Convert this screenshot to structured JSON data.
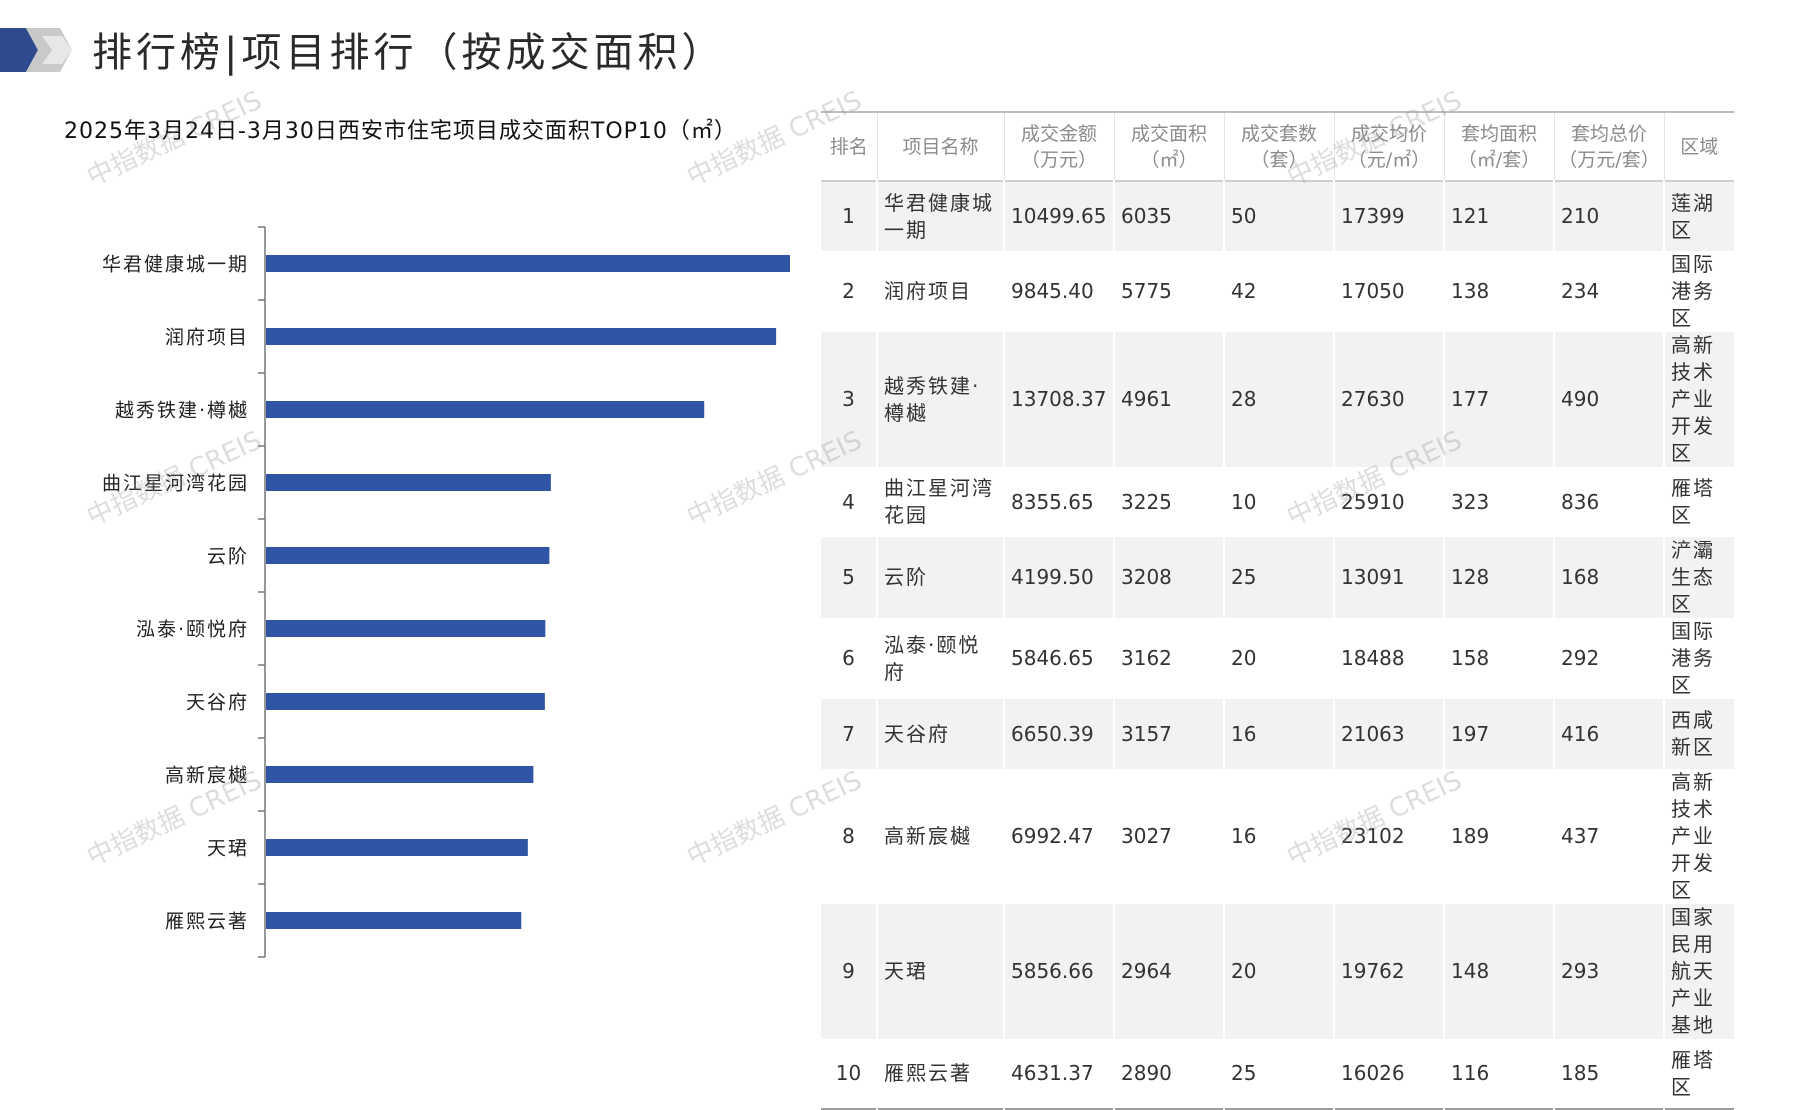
{
  "header": {
    "title": "排行榜|项目排行（按成交面积）"
  },
  "chart_data": {
    "type": "bar",
    "orientation": "horizontal",
    "title": "2025年3月24日-3月30日西安市住宅项目成交面积TOP10（㎡）",
    "categories": [
      "华君健康城一期",
      "润府项目",
      "越秀铁建·樽樾",
      "曲江星河湾花园",
      "云阶",
      "泓泰·颐悦府",
      "天谷府",
      "高新宸樾",
      "天珺",
      "雁熙云著"
    ],
    "values": [
      6035,
      5775,
      4961,
      3225,
      3208,
      3162,
      3157,
      3027,
      2964,
      2890
    ],
    "xlim": [
      0,
      9000
    ],
    "bar_color": "#2f55a4",
    "grid": false,
    "legend": "none"
  },
  "table": {
    "headers": [
      "排名",
      "项目名称",
      "成交金额\n（万元）",
      "成交面积\n（㎡）",
      "成交套数\n（套）",
      "成交均价\n（元/㎡）",
      "套均面积\n（㎡/套）",
      "套均总价\n（万元/套）",
      "区域"
    ],
    "rows": [
      [
        "1",
        "华君健康城一期",
        "10499.65",
        "6035",
        "50",
        "17399",
        "121",
        "210",
        "莲湖区"
      ],
      [
        "2",
        "润府项目",
        "9845.40",
        "5775",
        "42",
        "17050",
        "138",
        "234",
        "国际港务区"
      ],
      [
        "3",
        "越秀铁建·樽樾",
        "13708.37",
        "4961",
        "28",
        "27630",
        "177",
        "490",
        "高新技术产业开发区"
      ],
      [
        "4",
        "曲江星河湾花园",
        "8355.65",
        "3225",
        "10",
        "25910",
        "323",
        "836",
        "雁塔区"
      ],
      [
        "5",
        "云阶",
        "4199.50",
        "3208",
        "25",
        "13091",
        "128",
        "168",
        "浐灞生态区"
      ],
      [
        "6",
        "泓泰·颐悦府",
        "5846.65",
        "3162",
        "20",
        "18488",
        "158",
        "292",
        "国际港务区"
      ],
      [
        "7",
        "天谷府",
        "6650.39",
        "3157",
        "16",
        "21063",
        "197",
        "416",
        "西咸新区"
      ],
      [
        "8",
        "高新宸樾",
        "6992.47",
        "3027",
        "16",
        "23102",
        "189",
        "437",
        "高新技术产业开发区"
      ],
      [
        "9",
        "天珺",
        "5856.66",
        "2964",
        "20",
        "19762",
        "148",
        "293",
        "国家民用航天产业基地"
      ],
      [
        "10",
        "雁熙云著",
        "4631.37",
        "2890",
        "25",
        "16026",
        "116",
        "185",
        "雁塔区"
      ]
    ]
  },
  "watermark": "中指数据 CREIS",
  "colors": {
    "logo_dark": "#2f4a8f",
    "logo_gray": "#c9c9c9"
  }
}
